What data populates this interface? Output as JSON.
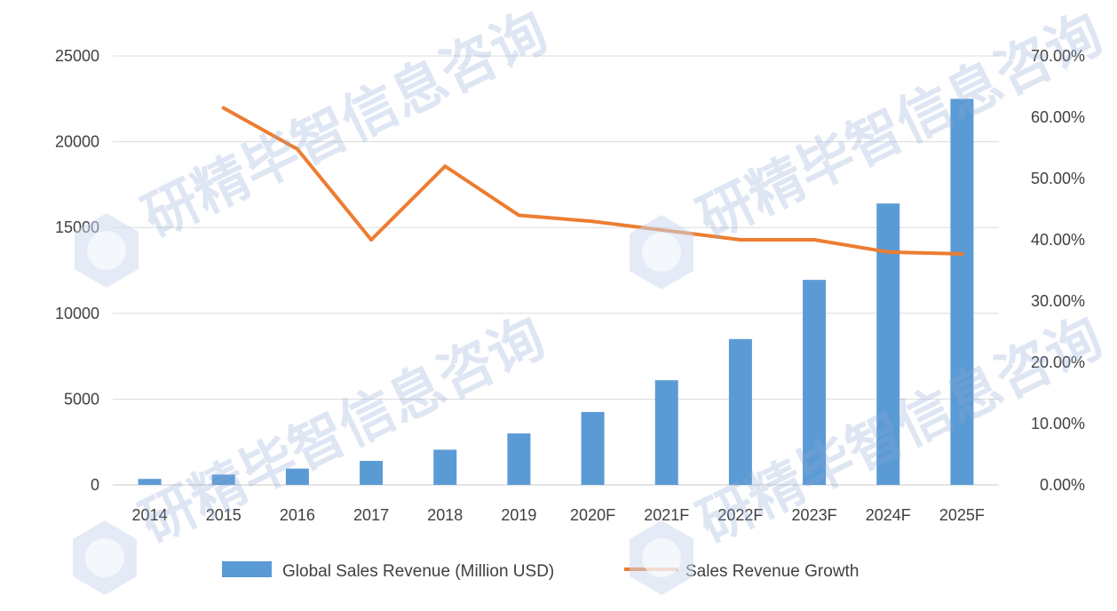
{
  "chart_data": {
    "type": "bar+line",
    "categories": [
      "2014",
      "2015",
      "2016",
      "2017",
      "2018",
      "2019",
      "2020F",
      "2021F",
      "2022F",
      "2023F",
      "2024F",
      "2025F"
    ],
    "series": [
      {
        "name": "Global Sales Revenue (Million USD)",
        "type": "bar",
        "axis": "left",
        "color": "#5b9bd5",
        "values": [
          350,
          600,
          950,
          1400,
          2050,
          3000,
          4250,
          6100,
          8500,
          11950,
          16400,
          22500
        ]
      },
      {
        "name": "Sales Revenue Growth",
        "type": "line",
        "axis": "right",
        "color": "#ed7d31",
        "values": [
          null,
          0.615,
          0.548,
          0.4,
          0.52,
          0.44,
          0.43,
          0.415,
          0.4,
          0.4,
          0.38,
          0.377
        ]
      }
    ],
    "y_left": {
      "min": 0,
      "max": 25000,
      "ticks": [
        "0",
        "5000",
        "10000",
        "15000",
        "20000",
        "25000"
      ]
    },
    "y_right": {
      "min": 0,
      "max": 0.7,
      "ticks": [
        "0.00%",
        "10.00%",
        "20.00%",
        "30.00%",
        "40.00%",
        "50.00%",
        "60.00%",
        "70.00%"
      ]
    },
    "grid": true,
    "legend": "bottom-center",
    "title": "",
    "xlabel": "",
    "ylabel": ""
  },
  "watermark": {
    "text": "研精毕智信息咨询",
    "color": "#8fa9d6"
  }
}
